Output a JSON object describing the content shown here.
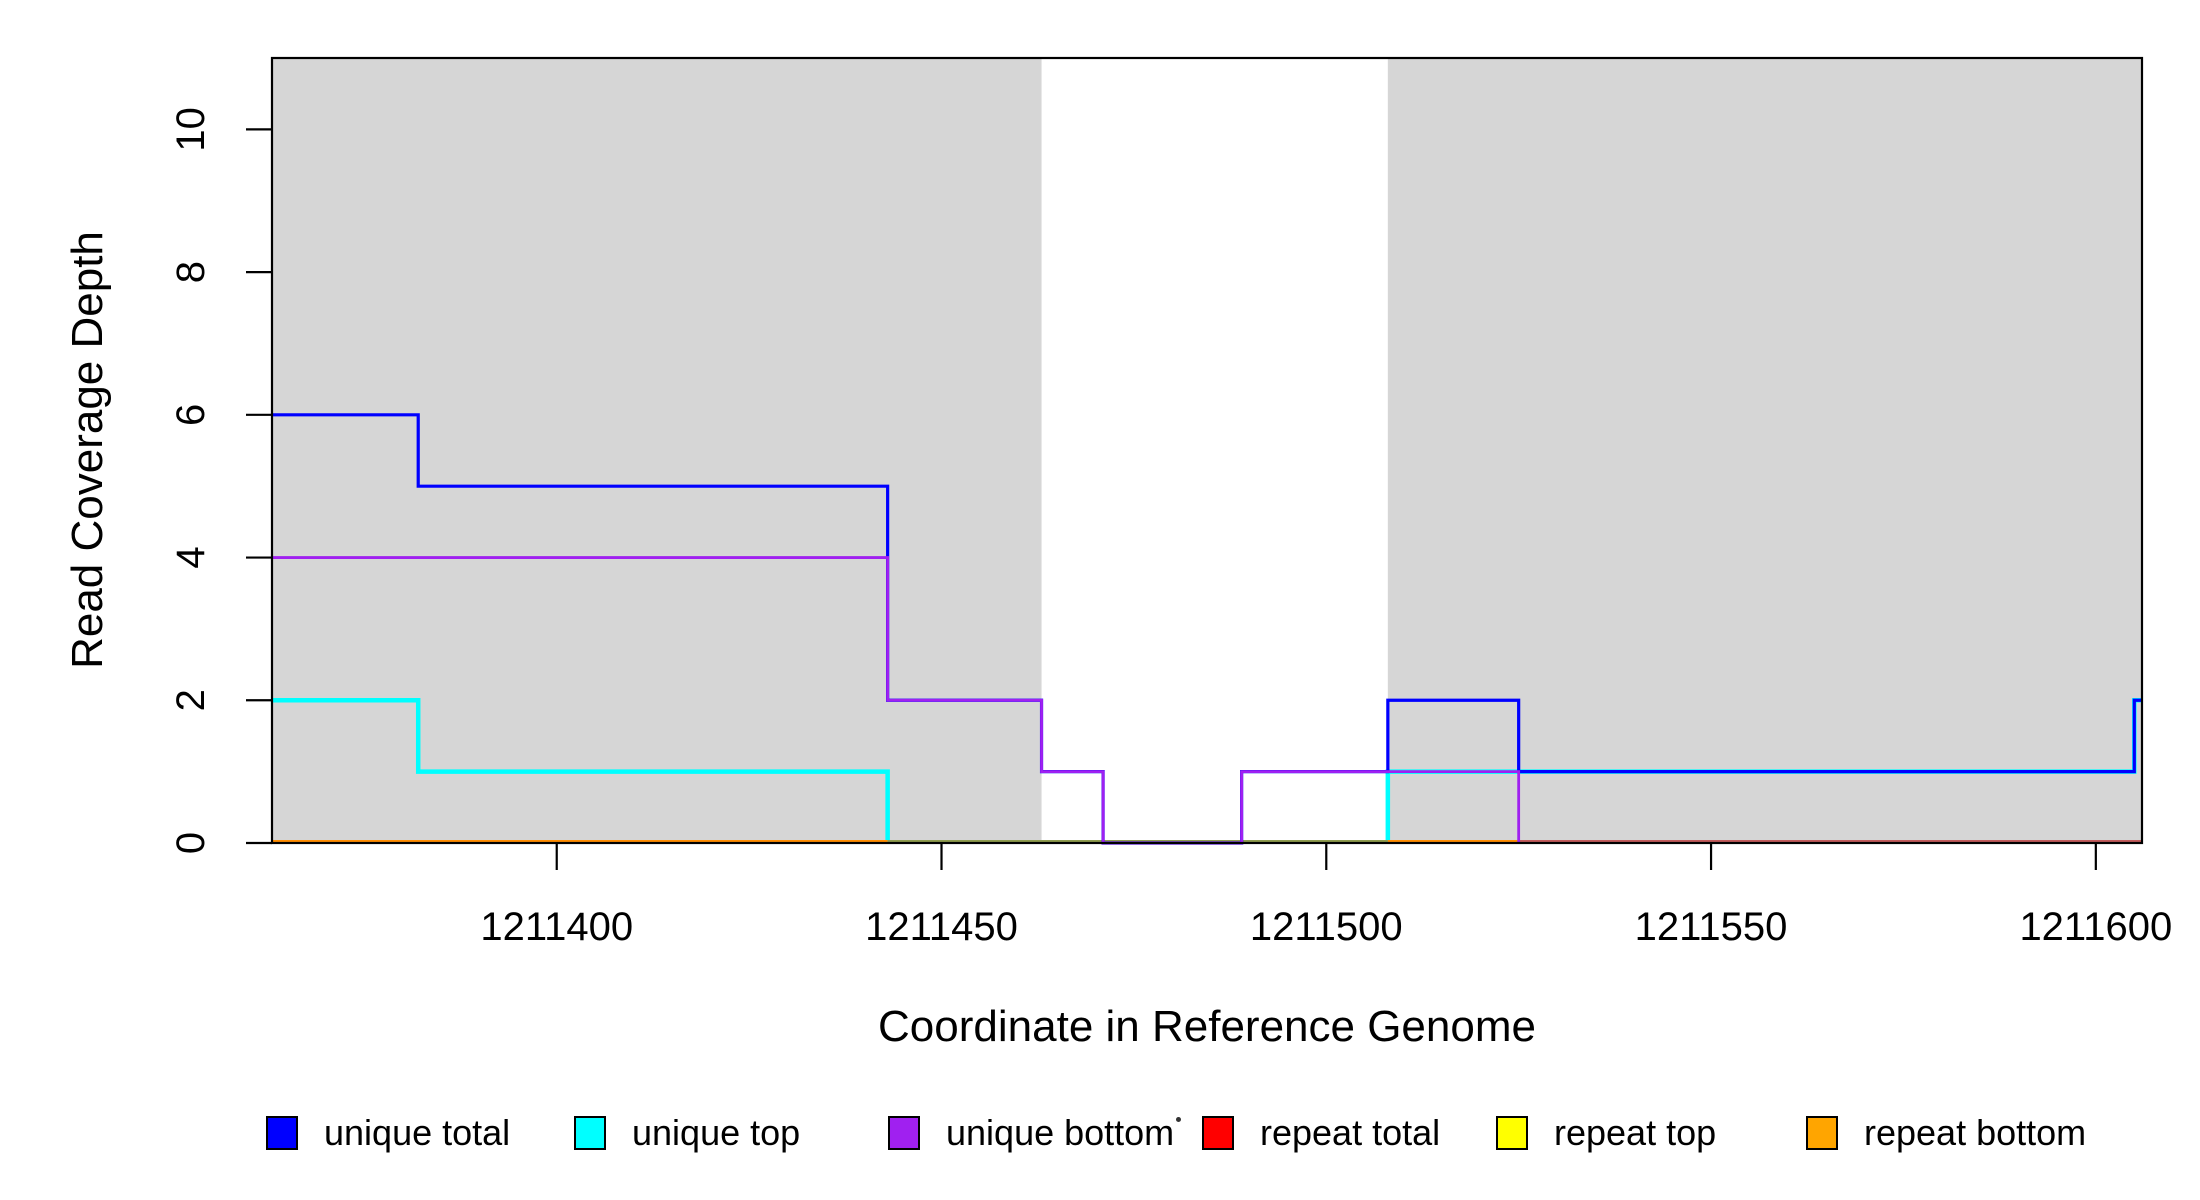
{
  "figure": {
    "background_color": "#ffffff",
    "plot_box_color": "#000000",
    "shading_color": "#D6D6D6"
  },
  "chart_data": {
    "type": "line",
    "subtype": "step-coverage",
    "title": "",
    "xlabel": "Coordinate in Reference Genome",
    "ylabel": "Read Coverage Depth",
    "xlim": [
      1211363,
      1211606
    ],
    "ylim": [
      0,
      11
    ],
    "x_ticks": [
      1211400,
      1211450,
      1211500,
      1211550,
      1211600
    ],
    "y_ticks": [
      0,
      2,
      4,
      6,
      8,
      10
    ],
    "grid": false,
    "legend_position": "bottom",
    "shaded_regions": [
      {
        "x0": 1211363,
        "x1": 1211463,
        "color": "#D6D6D6",
        "meaning": "repeat region shading"
      },
      {
        "x0": 1211508,
        "x1": 1211606,
        "color": "#D6D6D6",
        "meaning": "repeat region shading"
      }
    ],
    "series": [
      {
        "name": "unique total",
        "color": "#0000FF",
        "stroke_width": 3.2,
        "segments": [
          [
            [
              1211363,
              6
            ],
            [
              1211382,
              6
            ],
            [
              1211382,
              5
            ],
            [
              1211443,
              5
            ],
            [
              1211443,
              2
            ],
            [
              1211463,
              2
            ],
            [
              1211463,
              1
            ],
            [
              1211471,
              1
            ],
            [
              1211471,
              0
            ],
            [
              1211489,
              0
            ],
            [
              1211489,
              1
            ],
            [
              1211508,
              1
            ],
            [
              1211508,
              2
            ],
            [
              1211525,
              2
            ],
            [
              1211525,
              1
            ],
            [
              1211605,
              1
            ],
            [
              1211605,
              2
            ],
            [
              1211606,
              2
            ]
          ]
        ]
      },
      {
        "name": "unique top",
        "color": "#00FFFF",
        "stroke_width": 4.5,
        "segments": [
          [
            [
              1211363,
              2
            ],
            [
              1211382,
              2
            ],
            [
              1211382,
              1
            ],
            [
              1211443,
              1
            ],
            [
              1211443,
              0
            ]
          ],
          [
            [
              1211508,
              0
            ],
            [
              1211508,
              1
            ],
            [
              1211605,
              1
            ],
            [
              1211605,
              2
            ],
            [
              1211606,
              2
            ]
          ]
        ]
      },
      {
        "name": "unique bottom",
        "color": "#A020F0",
        "stroke_width": 2.8,
        "segments": [
          [
            [
              1211363,
              4
            ],
            [
              1211443,
              4
            ],
            [
              1211443,
              2
            ],
            [
              1211463,
              2
            ],
            [
              1211463,
              1
            ],
            [
              1211471,
              1
            ],
            [
              1211471,
              0
            ],
            [
              1211489,
              0
            ],
            [
              1211489,
              1
            ],
            [
              1211525,
              1
            ],
            [
              1211525,
              0
            ]
          ]
        ]
      },
      {
        "name": "repeat total",
        "color": "#FF0000",
        "stroke_width": 3,
        "values_note": "zero across entire window, drawn along baseline",
        "segments": [
          [
            [
              1211363,
              0
            ],
            [
              1211606,
              0
            ]
          ]
        ]
      },
      {
        "name": "repeat top",
        "color": "#FFFF00",
        "stroke_width": 3,
        "values_note": "zero across entire window, drawn along baseline",
        "segments": [
          [
            [
              1211363,
              0
            ],
            [
              1211606,
              0
            ]
          ]
        ]
      },
      {
        "name": "repeat bottom",
        "color": "#FFA500",
        "stroke_width": 3,
        "values_note": "zero across entire window, drawn along baseline",
        "segments": [
          [
            [
              1211363,
              0
            ],
            [
              1211606,
              0
            ]
          ]
        ]
      }
    ],
    "baseline_render_segments": [
      {
        "x0": 1211363,
        "x1": 1211443,
        "color": "#FF8C00"
      },
      {
        "x0": 1211443,
        "x1": 1211508,
        "color": "#8E9B4E"
      },
      {
        "x0": 1211508,
        "x1": 1211525,
        "color": "#FF8C00"
      },
      {
        "x0": 1211525,
        "x1": 1211606,
        "color": "#C25B5B"
      }
    ]
  },
  "legend": {
    "items": [
      {
        "label": "unique total",
        "color": "#0000FF"
      },
      {
        "label": "unique top",
        "color": "#00FFFF"
      },
      {
        "label": "unique bottom",
        "color": "#A020F0"
      },
      {
        "label": "repeat total",
        "color": "#FF0000"
      },
      {
        "label": "repeat top",
        "color": "#FFFF00"
      },
      {
        "label": "repeat bottom",
        "color": "#FFA500"
      }
    ],
    "stray_mark": "·"
  }
}
